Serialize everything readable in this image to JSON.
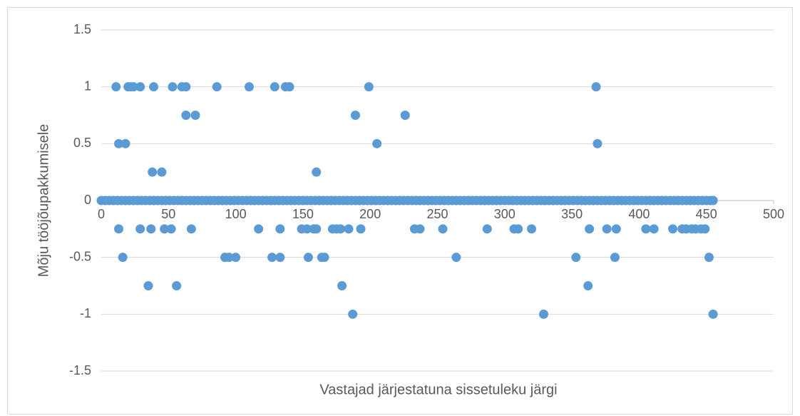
{
  "chart_data": {
    "type": "scatter",
    "xlabel": "Vastajad järjestatuna sissetuleku järgi",
    "ylabel": "Mõju tööjõupakkumisele",
    "color": "#5b9bd5",
    "xlim": [
      0,
      500
    ],
    "xticks": [
      0,
      50,
      100,
      150,
      200,
      250,
      300,
      350,
      400,
      450,
      500
    ],
    "ylim": [
      -1.5,
      1.5
    ],
    "yticks": [
      -1.5,
      -1,
      -0.5,
      0,
      0.5,
      1,
      1.5
    ],
    "grid": true,
    "x": [
      0,
      3,
      6,
      9,
      12,
      15,
      18,
      21,
      24,
      27,
      30,
      33,
      36,
      39,
      42,
      45,
      48,
      51,
      54,
      57,
      60,
      63,
      66,
      69,
      72,
      75,
      78,
      81,
      84,
      87,
      90,
      93,
      96,
      99,
      102,
      105,
      108,
      111,
      114,
      117,
      120,
      123,
      126,
      129,
      132,
      135,
      138,
      141,
      144,
      147,
      150,
      153,
      156,
      159,
      162,
      165,
      168,
      171,
      174,
      177,
      180,
      183,
      186,
      189,
      192,
      195,
      198,
      201,
      204,
      207,
      210,
      213,
      216,
      219,
      222,
      225,
      228,
      231,
      234,
      237,
      240,
      243,
      246,
      249,
      252,
      255,
      258,
      261,
      264,
      267,
      270,
      273,
      276,
      279,
      282,
      285,
      288,
      291,
      294,
      297,
      300,
      303,
      306,
      309,
      312,
      315,
      318,
      321,
      324,
      327,
      330,
      333,
      336,
      339,
      342,
      345,
      348,
      351,
      354,
      357,
      360,
      363,
      366,
      369,
      372,
      375,
      378,
      381,
      384,
      387,
      390,
      393,
      396,
      399,
      402,
      405,
      408,
      411,
      414,
      417,
      420,
      423,
      426,
      429,
      432,
      435,
      438,
      441,
      444,
      447,
      450,
      453,
      455,
      11,
      20,
      22,
      24,
      29,
      39,
      53,
      60,
      63,
      86,
      110,
      129,
      137,
      140,
      199,
      368,
      63,
      70,
      189,
      226,
      13,
      18,
      205,
      369,
      38,
      45,
      160,
      13,
      29,
      37,
      47,
      52,
      67,
      117,
      133,
      149,
      153,
      158,
      160,
      172,
      175,
      178,
      184,
      193,
      233,
      237,
      254,
      287,
      307,
      310,
      320,
      363,
      376,
      383,
      405,
      411,
      425,
      432,
      435,
      439,
      442,
      446,
      449,
      16,
      92,
      95,
      100,
      127,
      133,
      154,
      164,
      166,
      264,
      353,
      382,
      452,
      35,
      56,
      179,
      362,
      187,
      329,
      455
    ],
    "y": [
      0,
      0,
      0,
      0,
      0,
      0,
      0,
      0,
      0,
      0,
      0,
      0,
      0,
      0,
      0,
      0,
      0,
      0,
      0,
      0,
      0,
      0,
      0,
      0,
      0,
      0,
      0,
      0,
      0,
      0,
      0,
      0,
      0,
      0,
      0,
      0,
      0,
      0,
      0,
      0,
      0,
      0,
      0,
      0,
      0,
      0,
      0,
      0,
      0,
      0,
      0,
      0,
      0,
      0,
      0,
      0,
      0,
      0,
      0,
      0,
      0,
      0,
      0,
      0,
      0,
      0,
      0,
      0,
      0,
      0,
      0,
      0,
      0,
      0,
      0,
      0,
      0,
      0,
      0,
      0,
      0,
      0,
      0,
      0,
      0,
      0,
      0,
      0,
      0,
      0,
      0,
      0,
      0,
      0,
      0,
      0,
      0,
      0,
      0,
      0,
      0,
      0,
      0,
      0,
      0,
      0,
      0,
      0,
      0,
      0,
      0,
      0,
      0,
      0,
      0,
      0,
      0,
      0,
      0,
      0,
      0,
      0,
      0,
      0,
      0,
      0,
      0,
      0,
      0,
      0,
      0,
      0,
      0,
      0,
      0,
      0,
      0,
      0,
      0,
      0,
      0,
      0,
      0,
      0,
      0,
      0,
      0,
      0,
      0,
      0,
      0,
      0,
      0,
      1,
      1,
      1,
      1,
      1,
      1,
      1,
      1,
      1,
      1,
      1,
      1,
      1,
      1,
      1,
      1,
      0.75,
      0.75,
      0.75,
      0.75,
      0.5,
      0.5,
      0.5,
      0.5,
      0.25,
      0.25,
      0.25,
      -0.25,
      -0.25,
      -0.25,
      -0.25,
      -0.25,
      -0.25,
      -0.25,
      -0.25,
      -0.25,
      -0.25,
      -0.25,
      -0.25,
      -0.25,
      -0.25,
      -0.25,
      -0.25,
      -0.25,
      -0.25,
      -0.25,
      -0.25,
      -0.25,
      -0.25,
      -0.25,
      -0.25,
      -0.25,
      -0.25,
      -0.25,
      -0.25,
      -0.25,
      -0.25,
      -0.25,
      -0.25,
      -0.25,
      -0.25,
      -0.25,
      -0.25,
      -0.5,
      -0.5,
      -0.5,
      -0.5,
      -0.5,
      -0.5,
      -0.5,
      -0.5,
      -0.5,
      -0.5,
      -0.5,
      -0.5,
      -0.5,
      -0.75,
      -0.75,
      -0.75,
      -0.75,
      -1,
      -1,
      -1
    ]
  }
}
